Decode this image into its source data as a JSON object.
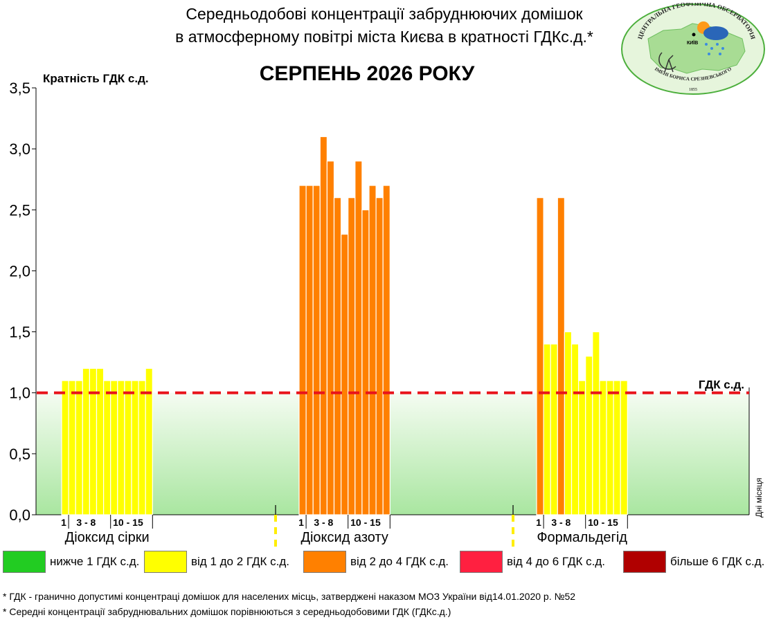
{
  "header": {
    "title_line1": "Середньодобові концентрації забруднюючих домішок",
    "title_line2": "в атмосферному повітрі міста Києва в кратності ГДКс.д.*",
    "month": "СЕРПЕНЬ 2026 РОКУ"
  },
  "logo": {
    "top_text": "ЦЕНТРАЛЬНА ГЕОФІЗИЧНА ОБСЕРВАТОРІЯ",
    "bottom_text": "ІМЕНІ БОРИСА СРЕЗНЕВСЬКОГО",
    "year": "1855",
    "city": "КИЇВ",
    "icon": "observatory-logo-icon"
  },
  "colors": {
    "green": "#22cc22",
    "yellow": "#ffff00",
    "orange": "#ff8000",
    "red": "#ff2040",
    "darkred": "#b00000",
    "threshold": "#e8141c"
  },
  "chart_data": {
    "type": "bar",
    "ylabel": "Кратність ГДК с.д.",
    "ylim": [
      0,
      3.5
    ],
    "yticks": [
      "0,0",
      "0,5",
      "1,0",
      "1,5",
      "2,0",
      "2,5",
      "3,0",
      "3,5"
    ],
    "threshold": {
      "value": 1.0,
      "label": "ГДК с.д."
    },
    "xaxis_side_label": "Дні місяця",
    "groups": [
      {
        "name": "Діоксид сірки",
        "day_labels": [
          "1",
          "3 - 8",
          "10 - 15"
        ],
        "values": [
          1.1,
          1.1,
          1.1,
          1.2,
          1.2,
          1.2,
          1.1,
          1.1,
          1.1,
          1.1,
          1.1,
          1.1,
          1.2
        ]
      },
      {
        "name": "Діоксид азоту",
        "day_labels": [
          "1",
          "3 - 8",
          "10 - 15"
        ],
        "values": [
          2.7,
          2.7,
          2.7,
          3.1,
          2.9,
          2.6,
          2.3,
          2.6,
          2.9,
          2.5,
          2.7,
          2.6,
          2.7
        ]
      },
      {
        "name": "Формальдегід",
        "day_labels": [
          "1",
          "3 - 8",
          "10 - 15"
        ],
        "values": [
          2.6,
          1.4,
          1.4,
          2.6,
          1.5,
          1.4,
          1.1,
          1.3,
          1.5,
          1.1,
          1.1,
          1.1,
          1.1
        ]
      }
    ]
  },
  "legend": [
    {
      "label": "нижче 1 ГДК с.д.",
      "color": "#22cc22"
    },
    {
      "label": "від 1 до 2 ГДК с.д.",
      "color": "#ffff00"
    },
    {
      "label": "від 2 до 4 ГДК с.д.",
      "color": "#ff8000"
    },
    {
      "label": "від 4 до 6 ГДК с.д.",
      "color": "#ff2040"
    },
    {
      "label": "більше 6 ГДК с.д.",
      "color": "#b00000"
    }
  ],
  "footnotes": [
    "* ГДК - гранично допустимі концентраці домішок для населених місць, затверджені наказом МОЗ України від14.01.2020 р. №52",
    "* Середні концентрації забруднювальних домішок порівнюються з середньодобовими  ГДК (ГДКс.д.)"
  ]
}
